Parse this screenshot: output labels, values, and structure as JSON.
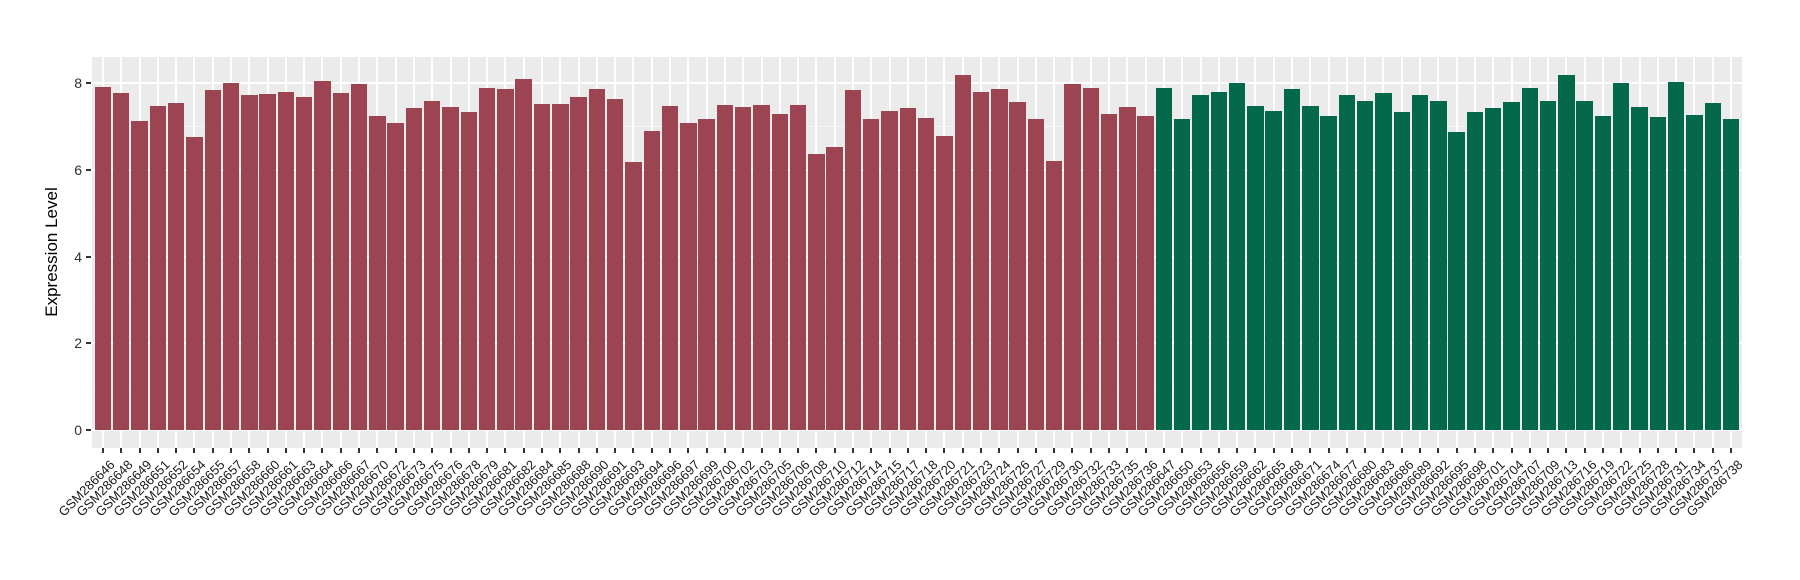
{
  "figure": {
    "background": "#FFFFFF",
    "title": ""
  },
  "chart_data": {
    "type": "bar",
    "title": "",
    "xlabel": "",
    "ylabel": "Expression Level",
    "yticks": [
      0,
      2,
      4,
      6,
      8
    ],
    "ylim": [
      0,
      8.6
    ],
    "grid": "white major horizontal lines at ticks, faint minor lines between, vertical white line per category",
    "legend": "none",
    "panel_background": "#EBEBEB",
    "group_colors": {
      "group1": "#9C4451",
      "group2": "#04684A"
    },
    "bars": [
      {
        "label": "GSM286646",
        "value": 7.92,
        "group": "group1"
      },
      {
        "label": "GSM286648",
        "value": 7.77,
        "group": "group1"
      },
      {
        "label": "GSM286649",
        "value": 7.12,
        "group": "group1"
      },
      {
        "label": "GSM286651",
        "value": 7.48,
        "group": "group1"
      },
      {
        "label": "GSM286652",
        "value": 7.54,
        "group": "group1"
      },
      {
        "label": "GSM286654",
        "value": 6.75,
        "group": "group1"
      },
      {
        "label": "GSM286655",
        "value": 7.85,
        "group": "group1"
      },
      {
        "label": "GSM286657",
        "value": 8.0,
        "group": "group1"
      },
      {
        "label": "GSM286658",
        "value": 7.73,
        "group": "group1"
      },
      {
        "label": "GSM286660",
        "value": 7.75,
        "group": "group1"
      },
      {
        "label": "GSM286661",
        "value": 7.81,
        "group": "group1"
      },
      {
        "label": "GSM286663",
        "value": 7.68,
        "group": "group1"
      },
      {
        "label": "GSM286664",
        "value": 8.06,
        "group": "group1"
      },
      {
        "label": "GSM286666",
        "value": 7.78,
        "group": "group1"
      },
      {
        "label": "GSM286667",
        "value": 7.99,
        "group": "group1"
      },
      {
        "label": "GSM286670",
        "value": 7.25,
        "group": "group1"
      },
      {
        "label": "GSM286672",
        "value": 7.08,
        "group": "group1"
      },
      {
        "label": "GSM286673",
        "value": 7.42,
        "group": "group1"
      },
      {
        "label": "GSM286675",
        "value": 7.6,
        "group": "group1"
      },
      {
        "label": "GSM286676",
        "value": 7.46,
        "group": "group1"
      },
      {
        "label": "GSM286678",
        "value": 7.34,
        "group": "group1"
      },
      {
        "label": "GSM286679",
        "value": 7.88,
        "group": "group1"
      },
      {
        "label": "GSM286681",
        "value": 7.86,
        "group": "group1"
      },
      {
        "label": "GSM286682",
        "value": 8.1,
        "group": "group1"
      },
      {
        "label": "GSM286684",
        "value": 7.52,
        "group": "group1"
      },
      {
        "label": "GSM286685",
        "value": 7.52,
        "group": "group1"
      },
      {
        "label": "GSM286688",
        "value": 7.68,
        "group": "group1"
      },
      {
        "label": "GSM286690",
        "value": 7.86,
        "group": "group1"
      },
      {
        "label": "GSM286691",
        "value": 7.63,
        "group": "group1"
      },
      {
        "label": "GSM286693",
        "value": 6.18,
        "group": "group1"
      },
      {
        "label": "GSM286694",
        "value": 6.9,
        "group": "group1"
      },
      {
        "label": "GSM286696",
        "value": 7.48,
        "group": "group1"
      },
      {
        "label": "GSM286697",
        "value": 7.08,
        "group": "group1"
      },
      {
        "label": "GSM286699",
        "value": 7.18,
        "group": "group1"
      },
      {
        "label": "GSM286700",
        "value": 7.5,
        "group": "group1"
      },
      {
        "label": "GSM286702",
        "value": 7.46,
        "group": "group1"
      },
      {
        "label": "GSM286703",
        "value": 7.5,
        "group": "group1"
      },
      {
        "label": "GSM286705",
        "value": 7.28,
        "group": "group1"
      },
      {
        "label": "GSM286706",
        "value": 7.5,
        "group": "group1"
      },
      {
        "label": "GSM286708",
        "value": 6.37,
        "group": "group1"
      },
      {
        "label": "GSM286710",
        "value": 6.54,
        "group": "group1"
      },
      {
        "label": "GSM286712",
        "value": 7.85,
        "group": "group1"
      },
      {
        "label": "GSM286714",
        "value": 7.17,
        "group": "group1"
      },
      {
        "label": "GSM286715",
        "value": 7.35,
        "group": "group1"
      },
      {
        "label": "GSM286717",
        "value": 7.44,
        "group": "group1"
      },
      {
        "label": "GSM286718",
        "value": 7.19,
        "group": "group1"
      },
      {
        "label": "GSM286720",
        "value": 6.79,
        "group": "group1"
      },
      {
        "label": "GSM286721",
        "value": 8.19,
        "group": "group1"
      },
      {
        "label": "GSM286723",
        "value": 7.79,
        "group": "group1"
      },
      {
        "label": "GSM286724",
        "value": 7.87,
        "group": "group1"
      },
      {
        "label": "GSM286726",
        "value": 7.56,
        "group": "group1"
      },
      {
        "label": "GSM286727",
        "value": 7.18,
        "group": "group1"
      },
      {
        "label": "GSM286729",
        "value": 6.21,
        "group": "group1"
      },
      {
        "label": "GSM286730",
        "value": 7.99,
        "group": "group1"
      },
      {
        "label": "GSM286732",
        "value": 7.9,
        "group": "group1"
      },
      {
        "label": "GSM286733",
        "value": 7.28,
        "group": "group1"
      },
      {
        "label": "GSM286735",
        "value": 7.45,
        "group": "group1"
      },
      {
        "label": "GSM286736",
        "value": 7.24,
        "group": "group1"
      },
      {
        "label": "GSM286647",
        "value": 7.88,
        "group": "group2"
      },
      {
        "label": "GSM286650",
        "value": 7.18,
        "group": "group2"
      },
      {
        "label": "GSM286653",
        "value": 7.73,
        "group": "group2"
      },
      {
        "label": "GSM286656",
        "value": 7.81,
        "group": "group2"
      },
      {
        "label": "GSM286659",
        "value": 8.0,
        "group": "group2"
      },
      {
        "label": "GSM286662",
        "value": 7.48,
        "group": "group2"
      },
      {
        "label": "GSM286665",
        "value": 7.35,
        "group": "group2"
      },
      {
        "label": "GSM286668",
        "value": 7.87,
        "group": "group2"
      },
      {
        "label": "GSM286671",
        "value": 7.48,
        "group": "group2"
      },
      {
        "label": "GSM286674",
        "value": 7.25,
        "group": "group2"
      },
      {
        "label": "GSM286677",
        "value": 7.72,
        "group": "group2"
      },
      {
        "label": "GSM286680",
        "value": 7.58,
        "group": "group2"
      },
      {
        "label": "GSM286683",
        "value": 7.78,
        "group": "group2"
      },
      {
        "label": "GSM286686",
        "value": 7.34,
        "group": "group2"
      },
      {
        "label": "GSM286689",
        "value": 7.72,
        "group": "group2"
      },
      {
        "label": "GSM286692",
        "value": 7.59,
        "group": "group2"
      },
      {
        "label": "GSM286695",
        "value": 6.88,
        "group": "group2"
      },
      {
        "label": "GSM286698",
        "value": 7.34,
        "group": "group2"
      },
      {
        "label": "GSM286701",
        "value": 7.44,
        "group": "group2"
      },
      {
        "label": "GSM286704",
        "value": 7.57,
        "group": "group2"
      },
      {
        "label": "GSM286707",
        "value": 7.88,
        "group": "group2"
      },
      {
        "label": "GSM286709",
        "value": 7.58,
        "group": "group2"
      },
      {
        "label": "GSM286713",
        "value": 8.19,
        "group": "group2"
      },
      {
        "label": "GSM286716",
        "value": 7.58,
        "group": "group2"
      },
      {
        "label": "GSM286719",
        "value": 7.25,
        "group": "group2"
      },
      {
        "label": "GSM286722",
        "value": 8.0,
        "group": "group2"
      },
      {
        "label": "GSM286725",
        "value": 7.45,
        "group": "group2"
      },
      {
        "label": "GSM286728",
        "value": 7.23,
        "group": "group2"
      },
      {
        "label": "GSM286731",
        "value": 8.04,
        "group": "group2"
      },
      {
        "label": "GSM286734",
        "value": 7.27,
        "group": "group2"
      },
      {
        "label": "GSM286737",
        "value": 7.55,
        "group": "group2"
      },
      {
        "label": "GSM286738",
        "value": 7.17,
        "group": "group2"
      }
    ]
  }
}
